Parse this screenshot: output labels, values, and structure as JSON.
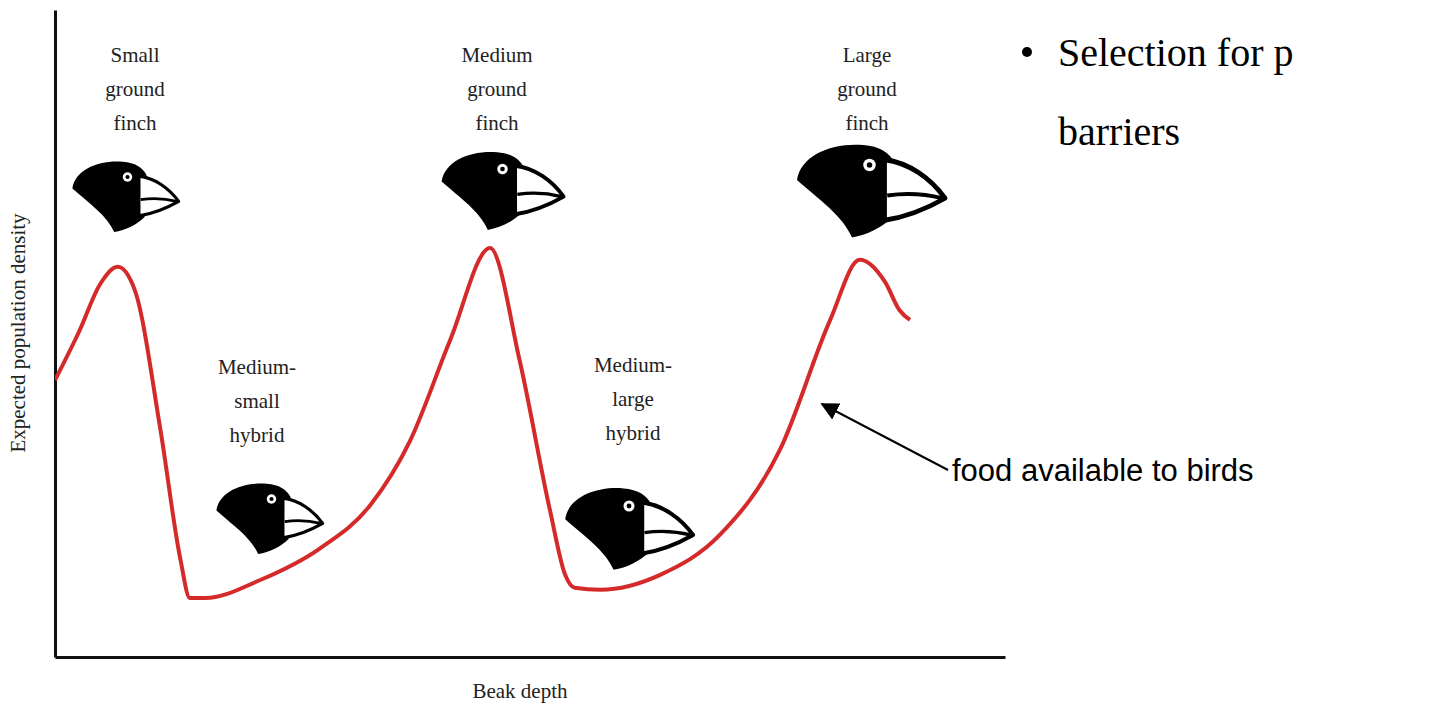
{
  "chart_data": {
    "type": "line",
    "x_label": "Beak depth",
    "y_label": "Expected population density",
    "x": [
      0,
      2.6,
      4.7,
      6.6,
      8.4,
      11.1,
      13.2,
      14.2,
      15.8,
      21.6,
      27.9,
      33.2,
      37.4,
      41.6,
      45.8,
      48.9,
      52.1,
      53.7,
      54.7,
      57.4,
      63.7,
      70,
      76.3,
      81.6,
      84.7,
      87.4,
      88.9,
      90
    ],
    "values": [
      42.8,
      50.5,
      57.5,
      60.3,
      56.7,
      35.1,
      15.1,
      9.1,
      9.1,
      11.9,
      16.8,
      23.5,
      33.5,
      49.0,
      63.2,
      45.9,
      22.7,
      12.7,
      10.7,
      10.4,
      12.7,
      18.9,
      32.0,
      52.1,
      61.4,
      57.9,
      53.6,
      52.1
    ],
    "color": "#d42a2a",
    "xlim": [
      0,
      100
    ],
    "ylim": [
      0,
      100
    ],
    "xticks": [],
    "yticks": [],
    "tick_labels": false,
    "annotations": [
      "Small ground finch",
      "Medium ground finch",
      "Large ground finch",
      "Medium-small hybrid",
      "Medium-large hybrid",
      "food available to birds",
      "Selection for p",
      "barriers"
    ]
  }
}
